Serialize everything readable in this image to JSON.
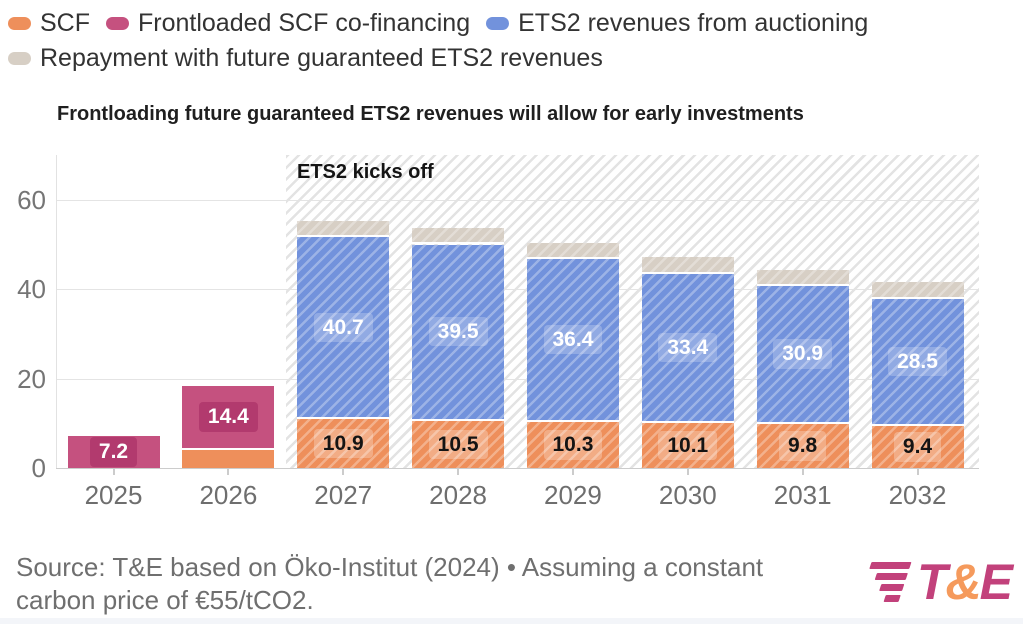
{
  "title": "Frontloading future guaranteed ETS2 revenues will allow for early investments",
  "legend": {
    "items": [
      {
        "label": "SCF",
        "color": "#EE8F5B"
      },
      {
        "label": "Frontloaded SCF co-financing",
        "color": "#C5517F"
      },
      {
        "label": "ETS2 revenues from auctioning",
        "color": "#7292DC"
      },
      {
        "label": "Repayment with future guaranteed ETS2 revenues",
        "color": "#D7CFC5"
      }
    ]
  },
  "chart_data": {
    "type": "bar",
    "stacked": true,
    "title": "Frontloading future guaranteed ETS2 revenues will allow for early investments",
    "categories": [
      "2025",
      "2026",
      "2027",
      "2028",
      "2029",
      "2030",
      "2031",
      "2032"
    ],
    "series": [
      {
        "name": "SCF",
        "color": "#EE8F5B",
        "values": [
          0,
          4,
          10.9,
          10.5,
          10.3,
          10.1,
          9.8,
          9.4
        ],
        "labels": [
          "",
          "",
          "10.9",
          "10.5",
          "10.3",
          "10.1",
          "9.8",
          "9.4"
        ]
      },
      {
        "name": "Frontloaded SCF co-financing",
        "color": "#C5517F",
        "values": [
          7.2,
          14.4,
          0,
          0,
          0,
          0,
          0,
          0
        ],
        "labels": [
          "7.2",
          "14.4",
          "",
          "",
          "",
          "",
          "",
          ""
        ]
      },
      {
        "name": "ETS2 revenues from auctioning",
        "color": "#7292DC",
        "values": [
          0,
          0,
          40.7,
          39.5,
          36.4,
          33.4,
          30.9,
          28.5
        ],
        "labels": [
          "",
          "",
          "40.7",
          "39.5",
          "36.4",
          "33.4",
          "30.9",
          "28.5"
        ]
      },
      {
        "name": "Repayment with future guaranteed ETS2 revenues",
        "color": "#D7CFC5",
        "values": [
          0,
          0,
          3.6,
          3.6,
          3.6,
          3.6,
          3.6,
          3.6
        ],
        "labels": [
          "",
          "",
          "",
          "",
          "",
          "",
          "",
          ""
        ]
      }
    ],
    "annotation": "ETS2 kicks off",
    "annotation_region": {
      "categories": [
        "2027",
        "2028",
        "2029",
        "2030",
        "2031",
        "2032"
      ],
      "style": "hatched"
    },
    "xlabel": "",
    "ylabel": "",
    "ylim": [
      0,
      70
    ],
    "yticks": [
      0,
      20,
      40,
      60
    ],
    "grid": true,
    "legend_position": "top"
  },
  "footer": {
    "source_line1": "Source: T&E based on Öko-Institut (2024) • Assuming a constant",
    "source_line2": "carbon price of €55/tCO2.",
    "logo": {
      "t": "T",
      "amp": "&",
      "e": "E",
      "color_primary": "#C2417B",
      "color_accent": "#F59A5C"
    }
  }
}
